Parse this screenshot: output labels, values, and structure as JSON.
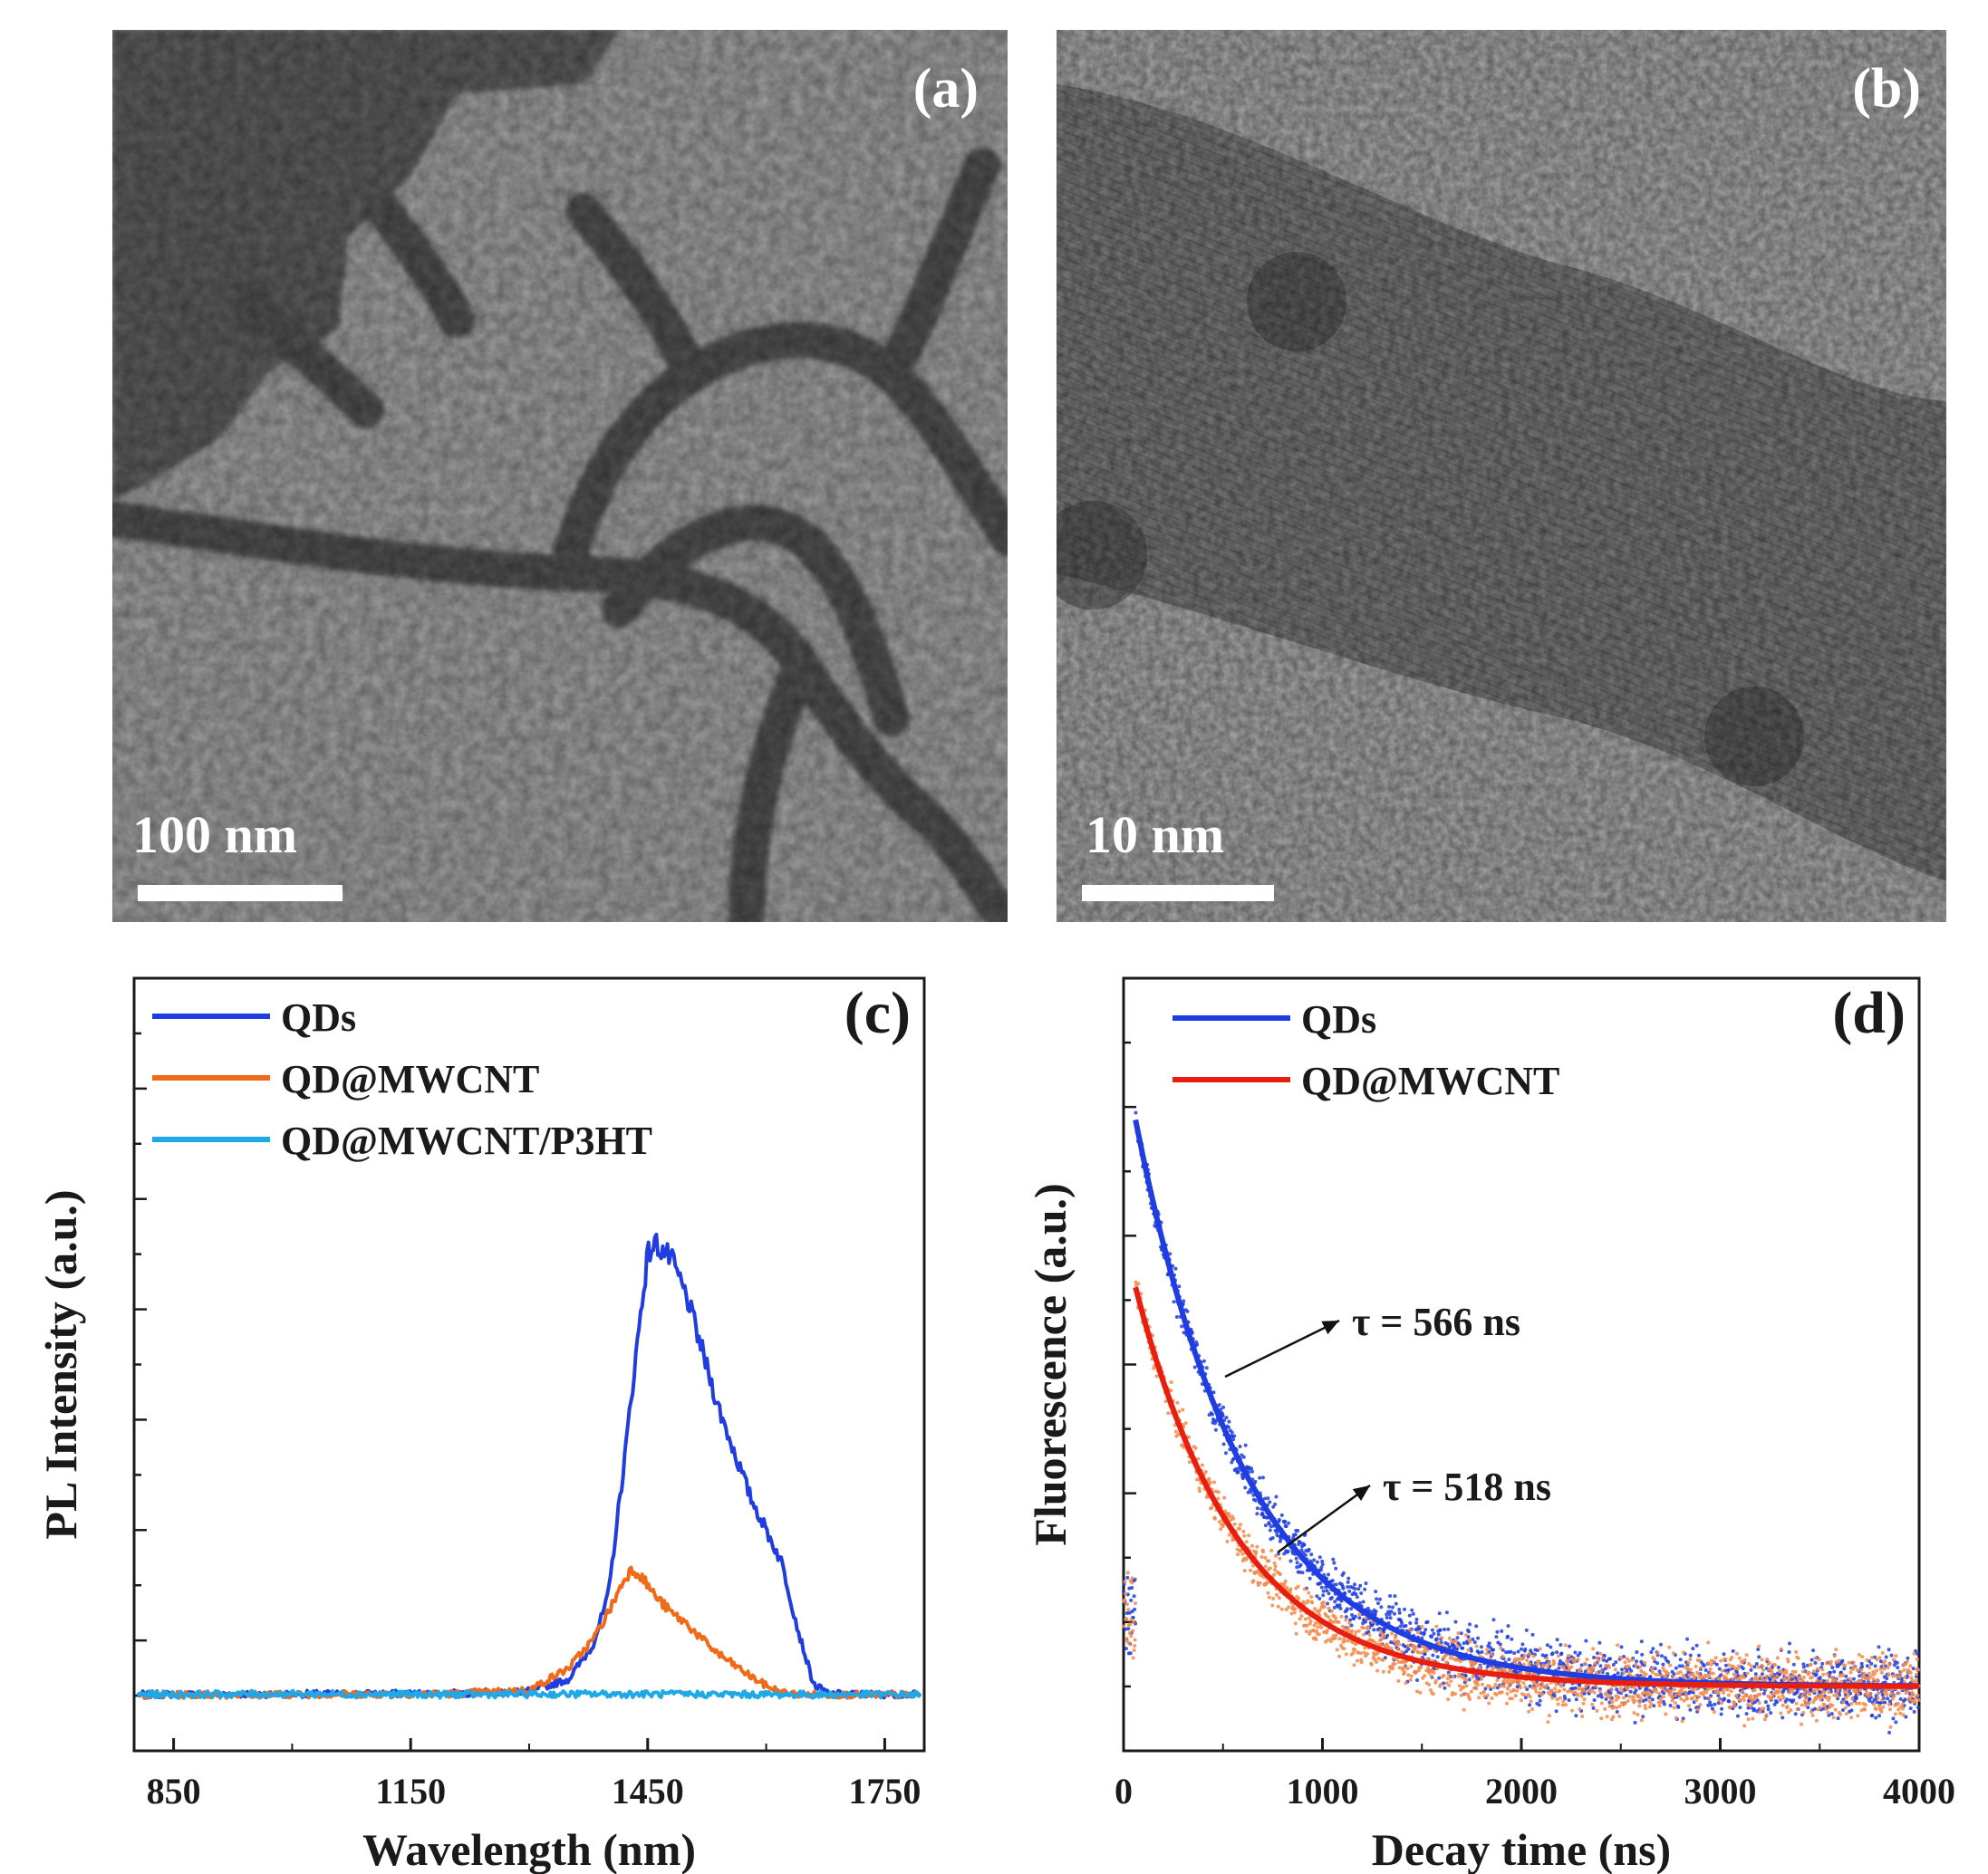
{
  "panel_a": {
    "label": "(a)",
    "scale_bar": "100 nm"
  },
  "panel_b": {
    "label": "(b)",
    "scale_bar": "10 nm"
  },
  "chart_data": [
    {
      "panel": "(c)",
      "type": "line",
      "xlabel": "Wavelength (nm)",
      "ylabel": "PL Intensity (a.u.)",
      "xlim": [
        800,
        1800
      ],
      "ylim": [
        -0.1,
        1.3
      ],
      "xticks": [
        "850",
        "1150",
        "1450",
        "1750"
      ],
      "legend_position": "top-left",
      "series": [
        {
          "name": "QDs",
          "color": "#1f3de0",
          "x": [
            800,
            1200,
            1300,
            1350,
            1380,
            1400,
            1420,
            1440,
            1450,
            1460,
            1480,
            1500,
            1520,
            1540,
            1560,
            1580,
            1600,
            1620,
            1640,
            1660,
            1680,
            1800
          ],
          "y": [
            0.002,
            0.004,
            0.008,
            0.03,
            0.09,
            0.18,
            0.42,
            0.68,
            0.8,
            0.82,
            0.79,
            0.72,
            0.62,
            0.52,
            0.44,
            0.36,
            0.3,
            0.24,
            0.12,
            0.02,
            0.003,
            0.002
          ]
        },
        {
          "name": "QD@MWCNT",
          "color": "#f06a18",
          "x": [
            800,
            1200,
            1300,
            1350,
            1380,
            1400,
            1420,
            1430,
            1440,
            1460,
            1480,
            1500,
            1520,
            1540,
            1560,
            1580,
            1600,
            1620,
            1640,
            1800
          ],
          "y": [
            0.001,
            0.003,
            0.01,
            0.05,
            0.1,
            0.15,
            0.21,
            0.23,
            0.22,
            0.18,
            0.15,
            0.13,
            0.1,
            0.075,
            0.055,
            0.035,
            0.018,
            0.006,
            0.002,
            0.001
          ]
        },
        {
          "name": "QD@MWCNT/P3HT",
          "color": "#1fa8e8",
          "x": [
            800,
            1000,
            1200,
            1400,
            1600,
            1800
          ],
          "y": [
            0.002,
            0.003,
            0.002,
            0.003,
            0.002,
            0.002
          ]
        }
      ]
    },
    {
      "panel": "(d)",
      "type": "scatter",
      "xlabel": "Decay time (ns)",
      "ylabel": "Fluorescence (a.u.)",
      "xlim": [
        0,
        4000
      ],
      "ylim": [
        -0.1,
        1.1
      ],
      "xticks": [
        "0",
        "1000",
        "2000",
        "3000",
        "4000"
      ],
      "legend_position": "top-left",
      "annotations": [
        "τ = 566 ns",
        "τ = 518 ns"
      ],
      "series": [
        {
          "name": "QDs",
          "color": "#1f3de0",
          "fit_tau_ns": 566,
          "amplitude": 0.88,
          "start_ns": 60,
          "baseline": 0.0
        },
        {
          "name": "QD@MWCNT",
          "color": "#e81e10",
          "scatter_color": "#f58a4a",
          "fit_tau_ns": 518,
          "amplitude": 0.62,
          "start_ns": 60,
          "baseline": 0.0
        }
      ]
    }
  ]
}
